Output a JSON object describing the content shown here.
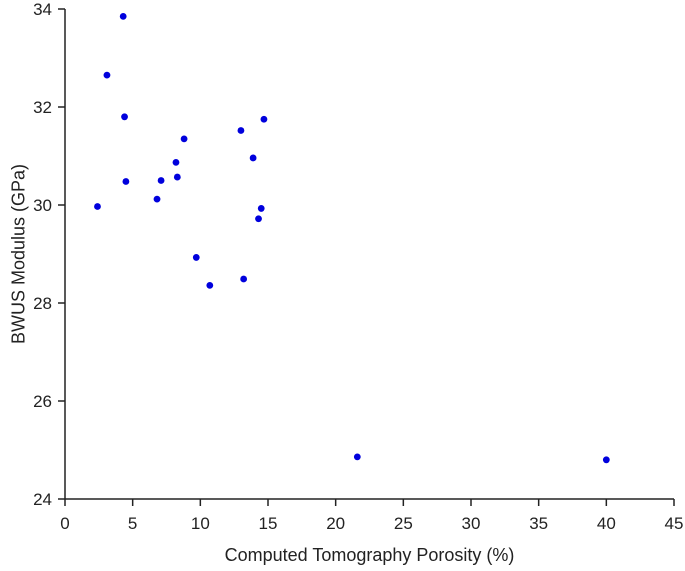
{
  "chart_data": {
    "type": "scatter",
    "xlabel": "Computed Tomography Porosity (%)",
    "ylabel": "BWUS Modulus (GPa)",
    "xlim": [
      0,
      45
    ],
    "ylim": [
      24,
      34
    ],
    "xticks": [
      0,
      5,
      10,
      15,
      20,
      25,
      30,
      35,
      40,
      45
    ],
    "yticks": [
      24,
      26,
      28,
      30,
      32,
      34
    ],
    "xtick_labels": [
      "0",
      "5",
      "10",
      "15",
      "20",
      "25",
      "30",
      "35",
      "40",
      "45"
    ],
    "ytick_labels": [
      "24",
      "26",
      "28",
      "30",
      "32",
      "34"
    ],
    "grid": false,
    "marker_color": "#0000dd",
    "series": [
      {
        "x": [
          4.3,
          3.1,
          4.4,
          2.4,
          4.5,
          6.8,
          7.1,
          8.2,
          8.3,
          8.8,
          9.7,
          10.7,
          13.0,
          13.2,
          13.9,
          14.3,
          14.5,
          14.7,
          21.6,
          40.0
        ],
        "y": [
          33.85,
          32.65,
          31.8,
          29.97,
          30.48,
          30.12,
          30.5,
          30.87,
          30.57,
          31.35,
          28.93,
          28.36,
          31.52,
          28.49,
          30.96,
          29.72,
          29.93,
          31.75,
          24.86,
          24.8
        ]
      }
    ]
  }
}
